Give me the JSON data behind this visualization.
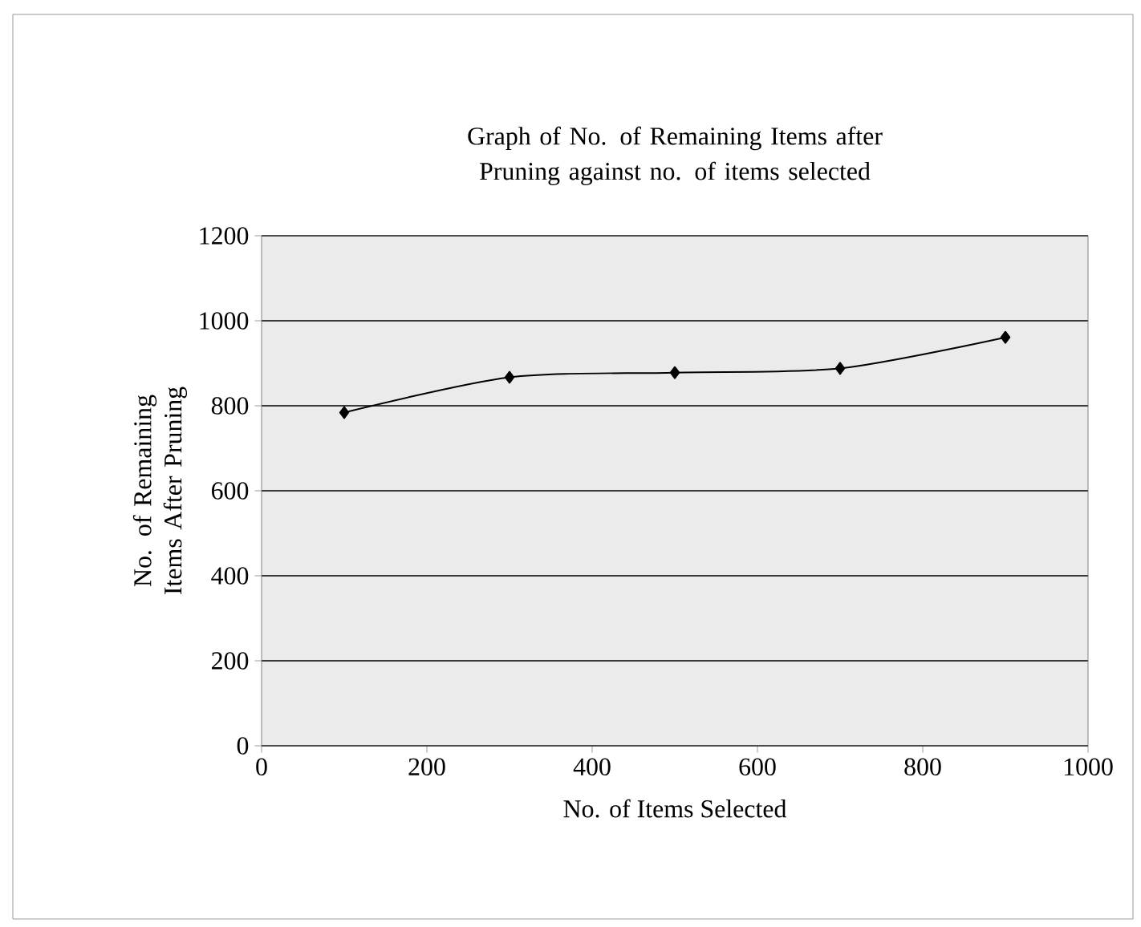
{
  "chart_data": {
    "type": "line",
    "title": "Graph of No. of Remaining Items after Pruning against no. of items selected",
    "xlabel": "No. of Items Selected",
    "ylabel": "No. of Remaining Items After Pruning",
    "x": [
      100,
      300,
      500,
      700,
      900
    ],
    "series": [
      {
        "color": "#000000",
        "values": [
          784,
          867,
          878,
          888,
          961
        ]
      }
    ],
    "xlim": [
      0,
      1000
    ],
    "xticks": [
      0,
      200,
      400,
      600,
      800,
      1000
    ],
    "ylim": [
      0,
      1200
    ],
    "yticks": [
      0,
      200,
      400,
      600,
      800,
      1000,
      1200
    ],
    "grid": "y",
    "marker": "diamond",
    "line_style": "solid"
  }
}
